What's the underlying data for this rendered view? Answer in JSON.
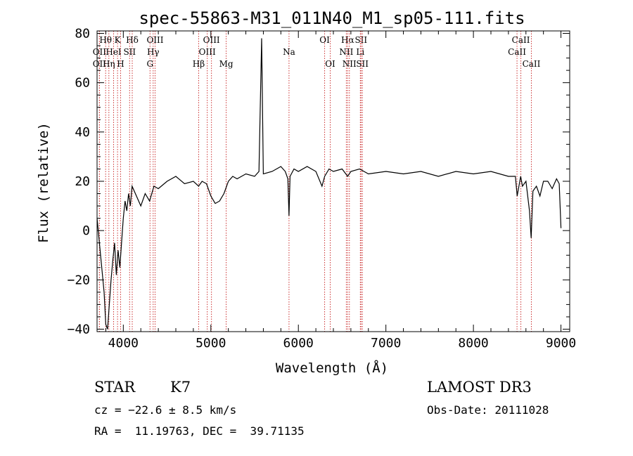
{
  "chart_data": {
    "type": "line",
    "title": "spec-55863-M31_011N40_M1_sp05-111.fits",
    "xlabel": "Wavelength (Å)",
    "ylabel": "Flux (relative)",
    "xlim": [
      3700,
      9100
    ],
    "ylim": [
      -41,
      81
    ],
    "xticks": [
      4000,
      5000,
      6000,
      7000,
      8000,
      9000
    ],
    "yticks": [
      -40,
      -20,
      0,
      20,
      40,
      60,
      80
    ],
    "grid": false,
    "series": [
      {
        "x": [
          3700,
          3740,
          3780,
          3800,
          3820,
          3840,
          3860,
          3880,
          3900,
          3920,
          3940,
          3960,
          3980,
          4000,
          4020,
          4040,
          4060,
          4080,
          4100,
          4150,
          4200,
          4250,
          4300,
          4350,
          4400,
          4500,
          4600,
          4700,
          4800,
          4860,
          4900,
          4950,
          5000,
          5050,
          5100,
          5150,
          5200,
          5250,
          5300,
          5400,
          5500,
          5550,
          5580,
          5600,
          5700,
          5800,
          5850,
          5880,
          5893,
          5905,
          5950,
          6000,
          6100,
          6200,
          6270,
          6300,
          6350,
          6400,
          6500,
          6563,
          6600,
          6700,
          6800,
          7000,
          7200,
          7400,
          7600,
          7800,
          8000,
          8200,
          8400,
          8480,
          8500,
          8540,
          8560,
          8600,
          8640,
          8660,
          8680,
          8720,
          8760,
          8800,
          8850,
          8900,
          8950,
          8980,
          9000
        ],
        "y": [
          5,
          -10,
          -25,
          -38,
          -40,
          -30,
          -20,
          -12,
          -5,
          -18,
          -8,
          -15,
          -5,
          5,
          12,
          8,
          15,
          10,
          18,
          14,
          10,
          15,
          12,
          18,
          17,
          20,
          22,
          19,
          20,
          18,
          20,
          19,
          14,
          11,
          12,
          15,
          20,
          22,
          21,
          23,
          22,
          24,
          78,
          23,
          24,
          26,
          24,
          21,
          6,
          22,
          25,
          24,
          26,
          24,
          18,
          22,
          25,
          24,
          25,
          22,
          24,
          25,
          23,
          24,
          23,
          24,
          22,
          24,
          23,
          24,
          22,
          22,
          14,
          22,
          18,
          20,
          8,
          -3,
          16,
          18,
          14,
          20,
          20,
          17,
          21,
          19,
          1
        ]
      }
    ],
    "lines": [
      {
        "name": "Hθ",
        "wl": 3798,
        "row": 0
      },
      {
        "name": "OII",
        "wl": 3727,
        "row": 1
      },
      {
        "name": "OII",
        "wl": 3727,
        "row": 2
      },
      {
        "name": "K",
        "wl": 3934,
        "row": 0
      },
      {
        "name": "HeI",
        "wl": 3889,
        "row": 1
      },
      {
        "name": "Hη",
        "wl": 3835,
        "row": 2
      },
      {
        "name": "H",
        "wl": 3969,
        "row": 2
      },
      {
        "name": "Hδ",
        "wl": 4102,
        "row": 0
      },
      {
        "name": "SII",
        "wl": 4072,
        "row": 1
      },
      {
        "name": "OIII",
        "wl": 4363,
        "row": 0
      },
      {
        "name": "Hγ",
        "wl": 4341,
        "row": 1
      },
      {
        "name": "G",
        "wl": 4305,
        "row": 2
      },
      {
        "name": "Hβ",
        "wl": 4861,
        "row": 2
      },
      {
        "name": "OIII",
        "wl": 5007,
        "row": 0
      },
      {
        "name": "OIII",
        "wl": 4959,
        "row": 1
      },
      {
        "name": "Mg",
        "wl": 5175,
        "row": 2
      },
      {
        "name": "Na",
        "wl": 5893,
        "row": 1
      },
      {
        "name": "OI",
        "wl": 6300,
        "row": 0
      },
      {
        "name": "OI",
        "wl": 6364,
        "row": 2
      },
      {
        "name": "Hα",
        "wl": 6563,
        "row": 0
      },
      {
        "name": "NII",
        "wl": 6548,
        "row": 1
      },
      {
        "name": "NII",
        "wl": 6583,
        "row": 2
      },
      {
        "name": "SII",
        "wl": 6716,
        "row": 0
      },
      {
        "name": "Li",
        "wl": 6708,
        "row": 1
      },
      {
        "name": "SII",
        "wl": 6731,
        "row": 2
      },
      {
        "name": "CaII",
        "wl": 8542,
        "row": 0
      },
      {
        "name": "CaII",
        "wl": 8498,
        "row": 1
      },
      {
        "name": "CaII",
        "wl": 8662,
        "row": 2
      }
    ],
    "line_color": "#cc3333"
  },
  "info": {
    "object_class": "STAR",
    "subclass": "K7",
    "survey": "LAMOST DR3",
    "cz": "cz = −22.6 ± 8.5 km/s",
    "obs_date": "Obs-Date: 20111028",
    "radec": "RA =  11.19763, DEC =  39.71135"
  }
}
